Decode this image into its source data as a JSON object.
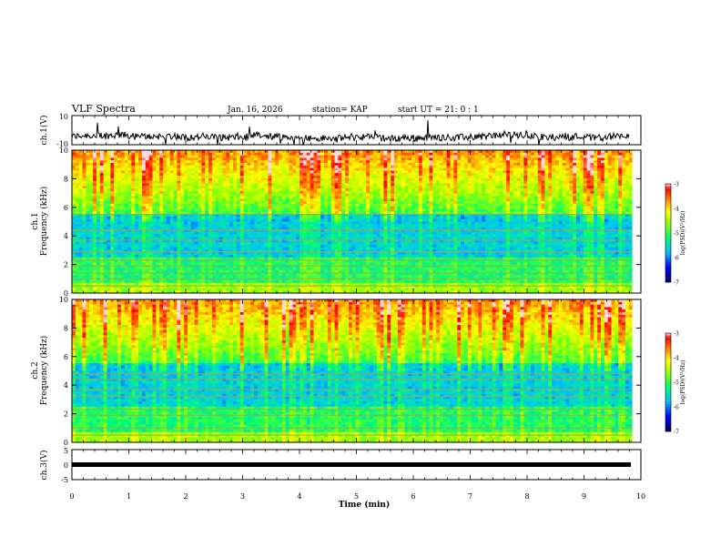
{
  "header": {
    "title": "VLF Spectra",
    "date": "Jan. 16, 2026",
    "station": "station= KAP",
    "start_ut": "start UT =  21: 0  : 1"
  },
  "chart_data": [
    {
      "type": "line",
      "name": "ch1-waveform",
      "ylabel": "ch.1(V)",
      "ylim": [
        -10,
        10
      ],
      "yticks": [
        "10",
        "-10"
      ],
      "xlim": [
        0,
        10
      ],
      "baseline": -4.5,
      "noise_amplitude": 2.5
    },
    {
      "type": "heatmap",
      "name": "ch1-spectrogram",
      "ylabel": "ch.1\nFrequency  (kHz)",
      "ylim": [
        0,
        10
      ],
      "yticks": [
        "0",
        "2",
        "4",
        "6",
        "8",
        "10"
      ],
      "xlim": [
        0,
        9.85
      ],
      "zlim": [
        -7,
        -3
      ],
      "colorbar": {
        "label": "log(PSD)(V²/Hz)",
        "ticks": [
          "-3",
          "-4",
          "-5",
          "-6",
          "-7"
        ]
      },
      "tones_khz": [
        0.5,
        1.0,
        1.4,
        1.9,
        2.3,
        2.9,
        3.7,
        4.4,
        5.5
      ]
    },
    {
      "type": "heatmap",
      "name": "ch2-spectrogram",
      "ylabel": "ch.2\nFrequency  (kHz)",
      "ylim": [
        0,
        10
      ],
      "yticks": [
        "0",
        "2",
        "4",
        "6",
        "8",
        "10"
      ],
      "xlim": [
        0,
        9.85
      ],
      "zlim": [
        -7,
        -3
      ],
      "colorbar": {
        "label": "log(PSD)(V²/Hz)",
        "ticks": [
          "-3",
          "-4",
          "-5",
          "-6",
          "-7"
        ]
      },
      "tones_khz": [
        0.5,
        1.0,
        1.9,
        2.3,
        3.2,
        3.7,
        4.4,
        4.8
      ]
    },
    {
      "type": "line",
      "name": "ch3-waveform",
      "ylabel": "ch.3(V)",
      "ylim": [
        -5,
        5
      ],
      "yticks": [
        "5",
        "0",
        "-5"
      ],
      "xlim": [
        0,
        10
      ],
      "baseline": -0.2,
      "noise_amplitude": 0.15
    }
  ],
  "xaxis": {
    "label": "Time  (min)",
    "ticks": [
      "0",
      "1",
      "2",
      "3",
      "4",
      "5",
      "6",
      "7",
      "8",
      "9",
      "10"
    ]
  }
}
